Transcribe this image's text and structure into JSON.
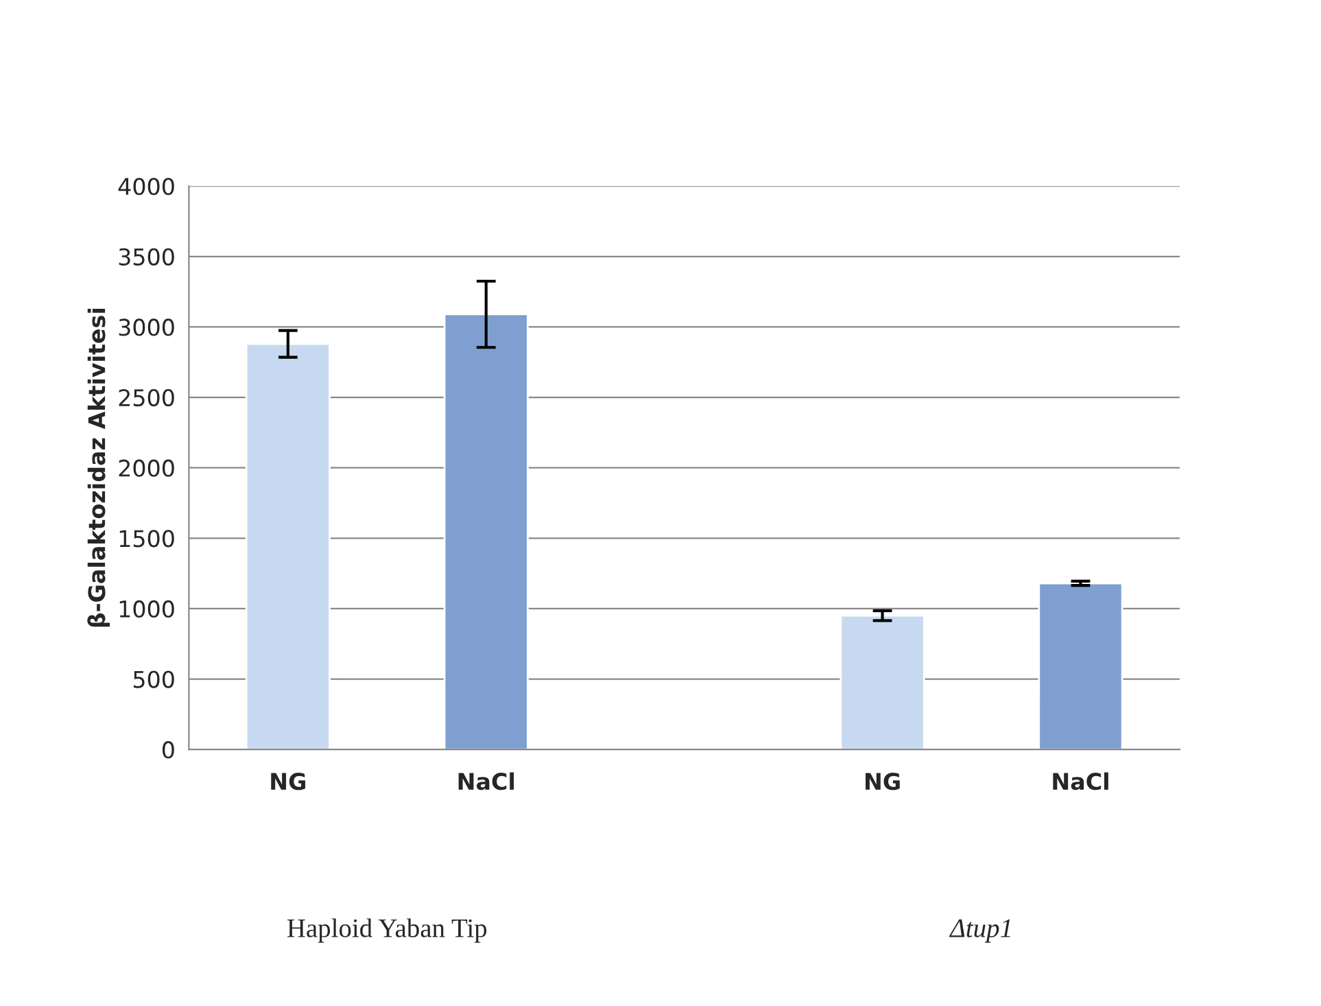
{
  "chart_data": {
    "type": "bar",
    "ylabel": "β-Galaktozidaz Aktivitesi",
    "categories": [
      "NG",
      "NaCl",
      null,
      "NG",
      "NaCl"
    ],
    "values": [
      2880,
      3090,
      null,
      950,
      1180
    ],
    "errors": [
      95,
      235,
      null,
      35,
      15
    ],
    "colors": [
      "#c6d9f1",
      "#7f9fd0",
      "#ffffff",
      "#c6d9f1",
      "#7f9fd0"
    ],
    "ylim": [
      0,
      4000
    ],
    "yticks": [
      0,
      500,
      1000,
      1500,
      2000,
      2500,
      3000,
      3500,
      4000
    ],
    "grid": "y",
    "annotations": [
      "Haploid Yaban Tip",
      "Δtup1"
    ]
  }
}
